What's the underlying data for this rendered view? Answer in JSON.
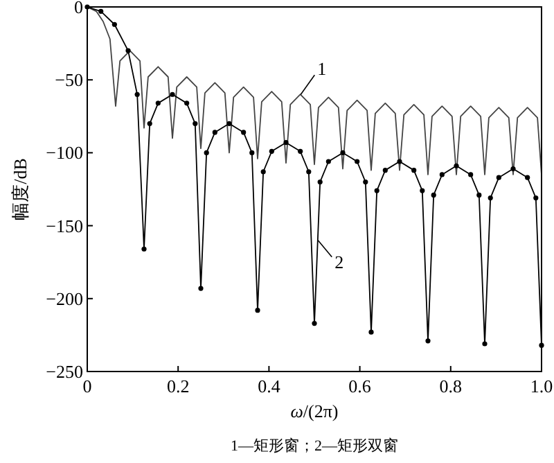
{
  "chart_data": {
    "type": "line",
    "xlabel": "*ω*/(2π)",
    "ylabel": "幅度/dB",
    "xlim": [
      0,
      1
    ],
    "ylim": [
      -250,
      0
    ],
    "xticks": [
      0,
      0.2,
      0.4,
      0.6,
      0.8,
      {
        "value": 1,
        "label": "1.0"
      }
    ],
    "yticks": [
      0,
      -50,
      -100,
      -150,
      -200,
      -250
    ],
    "grid": false,
    "series": [
      {
        "color": "#444444",
        "marker": "none",
        "x": [
          0,
          0.02,
          0.035,
          0.05,
          0.0625,
          0.072,
          0.094,
          0.116,
          0.125,
          0.134,
          0.156,
          0.178,
          0.1875,
          0.197,
          0.219,
          0.241,
          0.25,
          0.259,
          0.281,
          0.303,
          0.3125,
          0.322,
          0.344,
          0.366,
          0.375,
          0.384,
          0.406,
          0.428,
          0.4375,
          0.447,
          0.469,
          0.491,
          0.5,
          0.509,
          0.531,
          0.553,
          0.5625,
          0.572,
          0.594,
          0.616,
          0.625,
          0.634,
          0.656,
          0.678,
          0.6875,
          0.697,
          0.719,
          0.741,
          0.75,
          0.759,
          0.781,
          0.803,
          0.8125,
          0.822,
          0.844,
          0.866,
          0.875,
          0.884,
          0.906,
          0.928,
          0.9375,
          0.947,
          0.969,
          0.991,
          1.0
        ],
        "values": [
          0,
          -3,
          -10,
          -22,
          -68,
          -37,
          -30,
          -37,
          -83,
          -48,
          -41,
          -48,
          -90,
          -55,
          -48,
          -55,
          -97,
          -59,
          -52,
          -59,
          -100,
          -62,
          -55,
          -62,
          -104,
          -65,
          -58,
          -65,
          -107,
          -67,
          -60,
          -67,
          -108,
          -69,
          -62,
          -69,
          -111,
          -71,
          -64,
          -71,
          -112,
          -73,
          -66,
          -73,
          -112,
          -74,
          -67,
          -74,
          -115,
          -75,
          -68,
          -75,
          -115,
          -75,
          -68,
          -75,
          -115,
          -76,
          -69,
          -76,
          -115,
          -76,
          -69,
          -76,
          -115
        ]
      },
      {
        "color": "#000000",
        "marker": "circle",
        "x": [
          0,
          0.03,
          0.06,
          0.09,
          0.11,
          0.125,
          0.1375,
          0.156,
          0.1875,
          0.219,
          0.2375,
          0.25,
          0.2625,
          0.281,
          0.3125,
          0.344,
          0.3625,
          0.375,
          0.3875,
          0.406,
          0.4375,
          0.469,
          0.4875,
          0.5,
          0.5125,
          0.531,
          0.5625,
          0.594,
          0.6125,
          0.625,
          0.6375,
          0.656,
          0.6875,
          0.719,
          0.7375,
          0.75,
          0.7625,
          0.781,
          0.8125,
          0.844,
          0.8625,
          0.875,
          0.8875,
          0.906,
          0.9375,
          0.969,
          0.9875,
          1.0
        ],
        "values": [
          0,
          -3,
          -12,
          -30,
          -60,
          -166,
          -80,
          -66,
          -60,
          -66,
          -80,
          -193,
          -100,
          -86,
          -80,
          -86,
          -100,
          -208,
          -113,
          -99,
          -93,
          -99,
          -113,
          -217,
          -120,
          -106,
          -100,
          -106,
          -120,
          -223,
          -126,
          -112,
          -106,
          -112,
          -126,
          -229,
          -129,
          -115,
          -109,
          -115,
          -129,
          -231,
          -131,
          -117,
          -111,
          -117,
          -131,
          -232
        ]
      }
    ],
    "annotations": [
      {
        "text": "1",
        "x": 0.47,
        "y": -60
      },
      {
        "text": "2",
        "x": 0.508,
        "y": -160
      },
      "1—矩形窗；2—矩形双窗"
    ]
  }
}
